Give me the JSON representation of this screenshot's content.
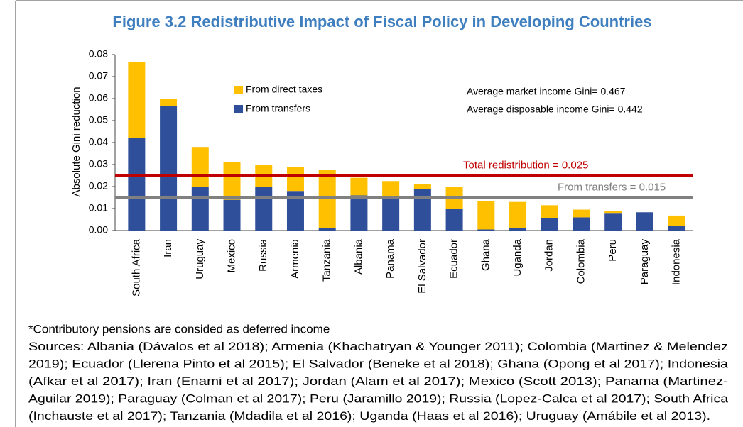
{
  "chart_data": {
    "type": "stacked_bar",
    "title": "Figure 3.2 Redistributive Impact of Fiscal Policy in Developing Countries",
    "y_label": "Absolute Gini  reduction",
    "categories": [
      "South Africa",
      "Iran",
      "Uruguay",
      "Mexico",
      "Russia",
      "Armenia",
      "Tanzania",
      "Albania",
      "Panama",
      "El Salvador",
      "Ecuador",
      "Ghana",
      "Uganda",
      "Jordan",
      "Colombia",
      "Peru",
      "Paraguay",
      "Indonesia"
    ],
    "series": [
      {
        "name": "From transfers",
        "color": "#2f4f9a",
        "values": [
          0.042,
          0.0565,
          0.02,
          0.014,
          0.02,
          0.018,
          0.001,
          0.016,
          0.0145,
          0.019,
          0.01,
          0.0005,
          0.001,
          0.0055,
          0.006,
          0.008,
          0.0083,
          0.002
        ]
      },
      {
        "name": "From direct taxes",
        "color": "#ffc000",
        "values": [
          0.0345,
          0.0035,
          0.018,
          0.017,
          0.01,
          0.011,
          0.0265,
          0.008,
          0.008,
          0.002,
          0.01,
          0.013,
          0.012,
          0.006,
          0.0035,
          0.001,
          0,
          0.0048
        ]
      }
    ],
    "ylim": [
      0,
      0.08
    ],
    "yticks": [
      {
        "value": 0,
        "label": "0.00"
      },
      0.01,
      0.02,
      0.03,
      0.04,
      0.05,
      0.06,
      0.07,
      0.08
    ],
    "reference_lines": [
      {
        "label": "Total redistribution =  ",
        "value": 0.025,
        "color": "#c00000"
      },
      {
        "label": "From transfers = ",
        "value": 0.015,
        "color": "#808080"
      }
    ],
    "annotations": [
      "Average market income Gini= 0.467",
      "Average disposable income Gini=  0.442"
    ],
    "footnotes": [
      "*Contributory pensions are consided as deferred income",
      "Sources: Albania (Dávalos et al 2018); Armenia (Khachatryan & Younger 2011); Colombia (Martinez & Melendez",
      "2019); Ecuador  (Llerena Pinto et al 2015); El Salvador  (Beneke et al 2018); Ghana  (Opong et al 2017); Indonesia",
      "(Afkar et al 2017); Iran  (Enami et al 2017); Jordan  (Alam et al 2017); Mexico  (Scott 2013); Panama (Martinez-",
      "Aguilar 2019); Paraguay (Colman et al 2017); Peru  (Jaramillo 2019); Russia  (Lopez-Calca et al 2017); South Africa",
      "(Inchauste et al 2017); Tanzania  (Mdadila et al 2016); Uganda (Haas et al 2016); Uruguay (Amábile et al 2013)."
    ]
  }
}
